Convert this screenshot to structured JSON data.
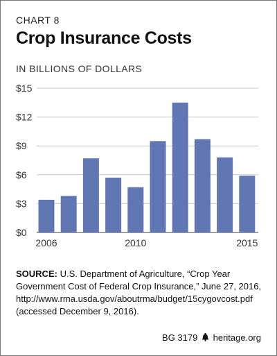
{
  "header": {
    "chart_label": "CHART 8",
    "title": "Crop Insurance Costs",
    "subtitle": "IN BILLIONS OF DOLLARS"
  },
  "colors": {
    "bar": "#6077b3",
    "grid": "#c9c9c9",
    "axis": "#666666"
  },
  "chart_data": {
    "type": "bar",
    "title": "Crop Insurance Costs",
    "subtitle": "IN BILLIONS OF DOLLARS",
    "x": [
      2006,
      2007,
      2008,
      2009,
      2010,
      2011,
      2012,
      2013,
      2014,
      2015
    ],
    "values": [
      3.4,
      3.8,
      7.7,
      5.7,
      4.7,
      9.5,
      13.5,
      9.7,
      7.8,
      5.9
    ],
    "x_tick_labels": [
      "2006",
      "2010",
      "2015"
    ],
    "y_ticks": [
      0,
      3,
      6,
      9,
      12,
      15
    ],
    "y_tick_labels": [
      "$0",
      "$3",
      "$6",
      "$9",
      "$12",
      "$15"
    ],
    "ylim": [
      0,
      15
    ],
    "grid": true,
    "xlabel": "",
    "ylabel": ""
  },
  "source": {
    "label": "SOURCE:",
    "text": " U.S. Department of Agriculture, “Crop Year Government Cost of Federal Crop Insurance,” June 27, 2016, http://www.rma.usda.gov/aboutrma/budget/15cygovcost.pdf (accessed December 9, 2016)."
  },
  "footer": {
    "code": "BG 3179",
    "logo_icon": "liberty-bell-icon",
    "site": "heritage.org"
  }
}
